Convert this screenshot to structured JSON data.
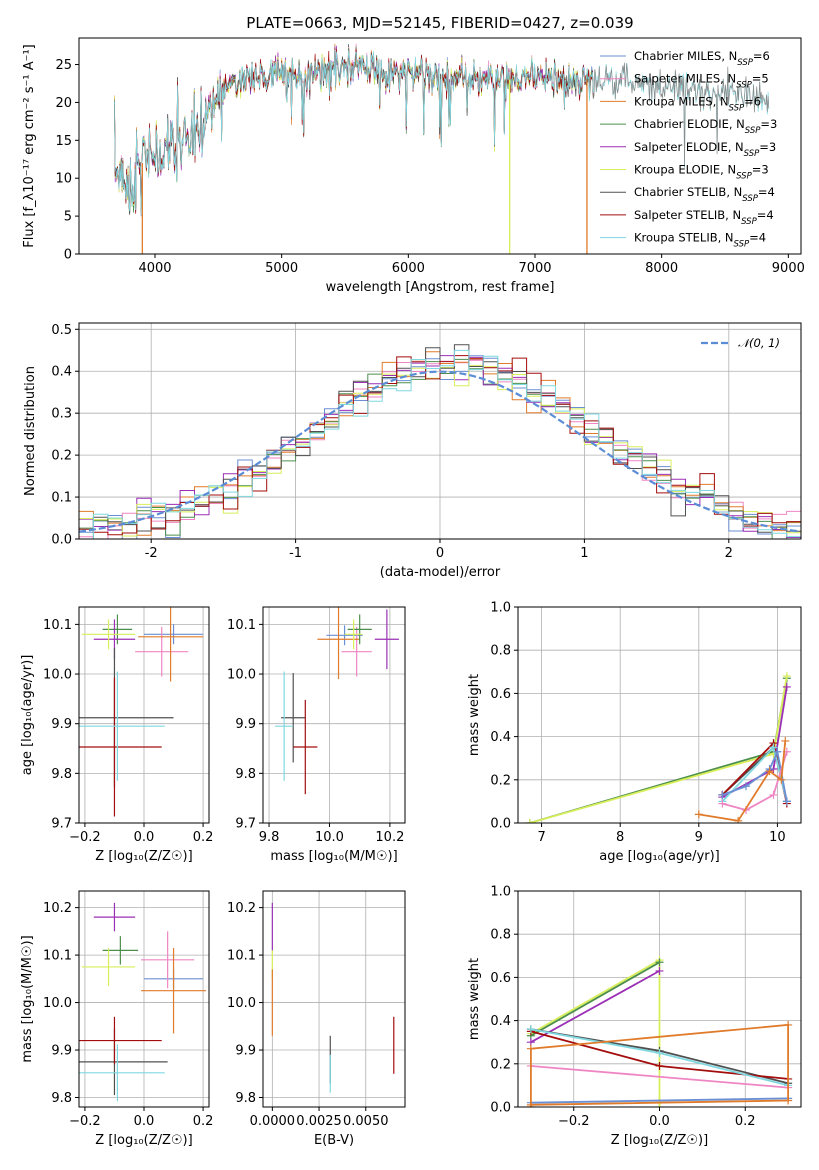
{
  "title": "PLATE=0663, MJD=52145, FIBERID=0427, z=0.039",
  "colors": {
    "Chabrier MILES": "#6a8fd3",
    "Salpeter MILES": "#ef86c4",
    "Kroupa MILES": "#e07b2b",
    "Chabrier ELODIE": "#4c8f4c",
    "Salpeter ELODIE": "#9b2fb5",
    "Kroupa ELODIE": "#d8ee5a",
    "Chabrier STELIB": "#505050",
    "Salpeter STELIB": "#a30d0d",
    "Kroupa STELIB": "#7fd8e0",
    "normal": "#5b8dd6"
  },
  "legend_spectrum": [
    {
      "key": "Chabrier MILES",
      "lib": "Chabrier MILES, N",
      "sub": "SSP",
      "eq": "=6"
    },
    {
      "key": "Salpeter MILES",
      "lib": "Salpeter MILES, N",
      "sub": "SSP",
      "eq": "=5"
    },
    {
      "key": "Kroupa MILES",
      "lib": "Kroupa MILES, N",
      "sub": "SSP",
      "eq": "=6"
    },
    {
      "key": "Chabrier ELODIE",
      "lib": "Chabrier ELODIE, N",
      "sub": "SSP",
      "eq": "=3"
    },
    {
      "key": "Salpeter ELODIE",
      "lib": "Salpeter ELODIE, N",
      "sub": "SSP",
      "eq": "=3"
    },
    {
      "key": "Kroupa ELODIE",
      "lib": "Kroupa ELODIE, N",
      "sub": "SSP",
      "eq": "=3"
    },
    {
      "key": "Chabrier STELIB",
      "lib": "Chabrier STELIB, N",
      "sub": "SSP",
      "eq": "=4"
    },
    {
      "key": "Salpeter STELIB",
      "lib": "Salpeter STELIB, N",
      "sub": "SSP",
      "eq": "=4"
    },
    {
      "key": "Kroupa STELIB",
      "lib": "Kroupa STELIB, N",
      "sub": "SSP",
      "eq": "=4"
    }
  ],
  "legend_hist": "𝒩(0, 1)",
  "chart_data": [
    {
      "id": "spectrum",
      "type": "line",
      "xlabel": "wavelength [Angstrom, rest frame]",
      "ylabel": "Flux [f_λ10⁻¹⁷ erg cm⁻² s⁻¹ A⁻¹]",
      "xlim": [
        3400,
        9100
      ],
      "ylim": [
        0,
        28.5
      ],
      "xticks": [
        4000,
        5000,
        6000,
        7000,
        8000,
        9000
      ],
      "yticks": [
        0,
        5,
        10,
        15,
        20,
        25
      ],
      "grid": false,
      "continuum": [
        [
          3700,
          11
        ],
        [
          3800,
          9
        ],
        [
          3900,
          12
        ],
        [
          4000,
          13
        ],
        [
          4100,
          14
        ],
        [
          4200,
          15
        ],
        [
          4300,
          15
        ],
        [
          4400,
          18
        ],
        [
          4500,
          21
        ],
        [
          4600,
          22.5
        ],
        [
          4800,
          23.5
        ],
        [
          5000,
          23.5
        ],
        [
          5200,
          23.5
        ],
        [
          5400,
          24.5
        ],
        [
          5600,
          24.5
        ],
        [
          5800,
          24
        ],
        [
          6000,
          24
        ],
        [
          6200,
          23.5
        ],
        [
          6500,
          23
        ],
        [
          6800,
          23
        ],
        [
          7000,
          23
        ],
        [
          7200,
          23
        ],
        [
          7400,
          23
        ],
        [
          7600,
          23
        ],
        [
          7800,
          22.5
        ],
        [
          8000,
          22
        ],
        [
          8300,
          21.5
        ],
        [
          8600,
          21
        ],
        [
          8850,
          20.5
        ]
      ],
      "model_end": [
        7460,
        8850
      ],
      "cutoffs": [
        {
          "key": "Kroupa MILES",
          "x": 3900
        },
        {
          "key": "Kroupa ELODIE",
          "x": 6800
        },
        {
          "key": "Kroupa MILES",
          "x": 7410
        }
      ]
    },
    {
      "id": "residual_hist",
      "type": "step",
      "xlabel": "(data-model)/error",
      "ylabel": "Normed distribution",
      "xlim": [
        -2.5,
        2.5
      ],
      "ylim": [
        0,
        0.515
      ],
      "xticks": [
        -2,
        -1,
        0,
        1,
        2
      ],
      "yticks": [
        0.0,
        0.1,
        0.2,
        0.3,
        0.4,
        0.5
      ],
      "grid": true,
      "bin_width": 0.1
    },
    {
      "id": "age_vs_Z",
      "type": "errorbar",
      "xlabel": "Z [log₁₀(Z/Z☉)]",
      "ylabel": "age  [log₁₀(age/yr)]",
      "xlim": [
        -0.22,
        0.22
      ],
      "ylim": [
        9.7,
        10.135
      ],
      "xticks": [
        -0.2,
        0.0,
        0.2
      ],
      "yticks": [
        9.7,
        9.8,
        9.9,
        10.0,
        10.1
      ],
      "grid": true,
      "points": [
        {
          "key": "Chabrier MILES",
          "x": 0.1,
          "y": 10.08,
          "xe": 0.1,
          "ye": 0.02
        },
        {
          "key": "Salpeter MILES",
          "x": 0.06,
          "y": 10.045,
          "xe": 0.09,
          "ye": 0.05
        },
        {
          "key": "Kroupa MILES",
          "x": 0.09,
          "y": 10.075,
          "xe": 0.11,
          "ye": 0.09
        },
        {
          "key": "Chabrier ELODIE",
          "x": -0.09,
          "y": 10.09,
          "xe": 0.05,
          "ye": 0.03
        },
        {
          "key": "Salpeter ELODIE",
          "x": -0.1,
          "y": 10.07,
          "xe": 0.07,
          "ye": 0.04
        },
        {
          "key": "Kroupa ELODIE",
          "x": -0.12,
          "y": 10.08,
          "xe": 0.09,
          "ye": 0.03
        },
        {
          "key": "Chabrier STELIB",
          "x": -0.1,
          "y": 9.912,
          "xe": 0.2,
          "ye": 0.14
        },
        {
          "key": "Salpeter STELIB",
          "x": -0.1,
          "y": 9.853,
          "xe": 0.16,
          "ye": 0.14
        },
        {
          "key": "Kroupa STELIB",
          "x": -0.09,
          "y": 9.895,
          "xe": 0.16,
          "ye": 0.11
        }
      ]
    },
    {
      "id": "age_vs_mass",
      "type": "errorbar",
      "xlabel": "mass [log₁₀(M/M☉)]",
      "ylabel": "",
      "xlim": [
        9.78,
        10.25
      ],
      "ylim": [
        9.7,
        10.135
      ],
      "xticks": [
        9.8,
        10.0,
        10.2
      ],
      "yticks": [
        9.7,
        9.8,
        9.9,
        10.0,
        10.1
      ],
      "grid": true,
      "points": [
        {
          "key": "Chabrier MILES",
          "x": 10.05,
          "y": 10.078,
          "xe": 0.06,
          "ye": 0.02
        },
        {
          "key": "Salpeter MILES",
          "x": 10.09,
          "y": 10.045,
          "xe": 0.05,
          "ye": 0.05
        },
        {
          "key": "Kroupa MILES",
          "x": 10.03,
          "y": 10.07,
          "xe": 0.07,
          "ye": 0.08
        },
        {
          "key": "Chabrier ELODIE",
          "x": 10.1,
          "y": 10.09,
          "xe": 0.04,
          "ye": 0.03
        },
        {
          "key": "Salpeter ELODIE",
          "x": 10.19,
          "y": 10.07,
          "xe": 0.04,
          "ye": 0.06
        },
        {
          "key": "Kroupa ELODIE",
          "x": 10.08,
          "y": 10.08,
          "xe": 0.03,
          "ye": 0.03
        },
        {
          "key": "Chabrier STELIB",
          "x": 9.88,
          "y": 9.912,
          "xe": 0.04,
          "ye": 0.09
        },
        {
          "key": "Salpeter STELIB",
          "x": 9.92,
          "y": 9.853,
          "xe": 0.04,
          "ye": 0.095
        },
        {
          "key": "Kroupa STELIB",
          "x": 9.85,
          "y": 9.895,
          "xe": 0.03,
          "ye": 0.11
        }
      ]
    },
    {
      "id": "massweight_vs_age",
      "type": "line",
      "xlabel": "age  [log₁₀(age/yr)]",
      "ylabel": "mass weight",
      "xlim": [
        6.7,
        10.3
      ],
      "ylim": [
        0,
        1.0
      ],
      "xticks": [
        7,
        8,
        9,
        10
      ],
      "yticks": [
        0.0,
        0.2,
        0.4,
        0.6,
        0.8,
        1.0
      ],
      "grid": true,
      "series": [
        {
          "key": "Chabrier ELODIE",
          "points": [
            [
              6.85,
              0.0
            ],
            [
              9.95,
              0.33
            ],
            [
              10.12,
              0.67
            ]
          ]
        },
        {
          "key": "Kroupa ELODIE",
          "points": [
            [
              6.85,
              0.0
            ],
            [
              9.95,
              0.32
            ],
            [
              10.12,
              0.68
            ]
          ]
        },
        {
          "key": "Salpeter ELODIE",
          "points": [
            [
              9.3,
              0.12
            ],
            [
              9.95,
              0.25
            ],
            [
              10.12,
              0.63
            ]
          ]
        },
        {
          "key": "Chabrier STELIB",
          "points": [
            [
              9.3,
              0.13
            ],
            [
              9.95,
              0.35
            ],
            [
              10.12,
              0.1
            ]
          ]
        },
        {
          "key": "Salpeter STELIB",
          "points": [
            [
              9.3,
              0.13
            ],
            [
              9.95,
              0.37
            ],
            [
              10.12,
              0.09
            ]
          ]
        },
        {
          "key": "Kroupa STELIB",
          "points": [
            [
              9.3,
              0.1
            ],
            [
              9.95,
              0.35
            ],
            [
              10.12,
              0.1
            ]
          ]
        },
        {
          "key": "Chabrier MILES",
          "points": [
            [
              9.3,
              0.13
            ],
            [
              9.6,
              0.17
            ],
            [
              9.9,
              0.25
            ],
            [
              10.0,
              0.33
            ],
            [
              10.12,
              0.1
            ]
          ]
        },
        {
          "key": "Salpeter MILES",
          "points": [
            [
              9.3,
              0.09
            ],
            [
              9.6,
              0.06
            ],
            [
              9.95,
              0.13
            ],
            [
              10.12,
              0.33
            ]
          ]
        },
        {
          "key": "Kroupa MILES",
          "points": [
            [
              9.0,
              0.04
            ],
            [
              9.5,
              0.01
            ],
            [
              9.9,
              0.24
            ],
            [
              10.05,
              0.2
            ],
            [
              10.1,
              0.38
            ]
          ]
        }
      ]
    },
    {
      "id": "mass_vs_Z",
      "type": "errorbar",
      "xlabel": "Z [log₁₀(Z/Z☉)]",
      "ylabel": "mass [log₁₀(M/M☉)]",
      "xlim": [
        -0.22,
        0.22
      ],
      "ylim": [
        9.78,
        10.235
      ],
      "xticks": [
        -0.2,
        0.0,
        0.2
      ],
      "yticks": [
        9.8,
        9.9,
        10.0,
        10.1,
        10.2
      ],
      "grid": true,
      "points": [
        {
          "key": "Chabrier MILES",
          "x": 0.1,
          "y": 10.05,
          "xe": 0.1,
          "ye": 0.02
        },
        {
          "key": "Salpeter MILES",
          "x": 0.08,
          "y": 10.09,
          "xe": 0.09,
          "ye": 0.06
        },
        {
          "key": "Kroupa MILES",
          "x": 0.1,
          "y": 10.025,
          "xe": 0.11,
          "ye": 0.09
        },
        {
          "key": "Chabrier ELODIE",
          "x": -0.08,
          "y": 10.11,
          "xe": 0.06,
          "ye": 0.03
        },
        {
          "key": "Salpeter ELODIE",
          "x": -0.1,
          "y": 10.18,
          "xe": 0.07,
          "ye": 0.03
        },
        {
          "key": "Kroupa ELODIE",
          "x": -0.12,
          "y": 10.075,
          "xe": 0.09,
          "ye": 0.04
        },
        {
          "key": "Chabrier STELIB",
          "x": -0.1,
          "y": 9.875,
          "xe": 0.18,
          "ye": 0.07
        },
        {
          "key": "Salpeter STELIB",
          "x": -0.1,
          "y": 9.92,
          "xe": 0.16,
          "ye": 0.05
        },
        {
          "key": "Kroupa STELIB",
          "x": -0.09,
          "y": 9.852,
          "xe": 0.16,
          "ye": 0.06
        }
      ]
    },
    {
      "id": "mass_vs_EBV",
      "type": "errorbar",
      "xlabel": "E(B-V)",
      "ylabel": "",
      "xlim": [
        -0.0005,
        0.0071
      ],
      "ylim": [
        9.78,
        10.235
      ],
      "xticks": [
        0.0,
        0.0025,
        0.005
      ],
      "xticklabels": [
        "0.0000",
        "0.0025",
        "0.0050"
      ],
      "yticks": [
        9.8,
        9.9,
        10.0,
        10.1,
        10.2
      ],
      "grid": true,
      "points": [
        {
          "key": "Salpeter ELODIE",
          "x": 0.0,
          "y": 10.16,
          "xe": 0,
          "ye": 0.05
        },
        {
          "key": "Kroupa ELODIE",
          "x": 0.0,
          "y": 10.08,
          "xe": 0,
          "ye": 0.03
        },
        {
          "key": "Kroupa MILES",
          "x": 0.0,
          "y": 10.0,
          "xe": 0,
          "ye": 0.07
        },
        {
          "key": "Chabrier STELIB",
          "x": 0.0031,
          "y": 9.88,
          "xe": 0,
          "ye": 0.05
        },
        {
          "key": "Kroupa STELIB",
          "x": 0.0031,
          "y": 9.85,
          "xe": 0,
          "ye": 0.04
        },
        {
          "key": "Salpeter STELIB",
          "x": 0.0065,
          "y": 9.91,
          "xe": 0,
          "ye": 0.06
        }
      ]
    },
    {
      "id": "massweight_vs_Z",
      "type": "line",
      "xlabel": "Z [log₁₀(Z/Z☉)]",
      "ylabel": "mass weight",
      "xlim": [
        -0.33,
        0.33
      ],
      "ylim": [
        0,
        1.0
      ],
      "xticks": [
        -0.2,
        0.0,
        0.2
      ],
      "yticks": [
        0.0,
        0.2,
        0.4,
        0.6,
        0.8,
        1.0
      ],
      "grid": true,
      "series": [
        {
          "key": "Kroupa ELODIE",
          "points": [
            [
              -0.3,
              0.34
            ],
            [
              0.0,
              0.68
            ],
            [
              0.0,
              0.0
            ]
          ]
        },
        {
          "key": "Chabrier ELODIE",
          "points": [
            [
              -0.3,
              0.33
            ],
            [
              0.0,
              0.67
            ]
          ]
        },
        {
          "key": "Salpeter ELODIE",
          "points": [
            [
              -0.3,
              0.3
            ],
            [
              0.0,
              0.63
            ]
          ]
        },
        {
          "key": "Chabrier STELIB",
          "points": [
            [
              -0.3,
              0.36
            ],
            [
              0.0,
              0.26
            ],
            [
              0.3,
              0.11
            ]
          ]
        },
        {
          "key": "Salpeter STELIB",
          "points": [
            [
              -0.3,
              0.35
            ],
            [
              0.0,
              0.19
            ],
            [
              0.3,
              0.13
            ]
          ]
        },
        {
          "key": "Kroupa STELIB",
          "points": [
            [
              -0.3,
              0.36
            ],
            [
              0.0,
              0.25
            ],
            [
              0.3,
              0.1
            ]
          ]
        },
        {
          "key": "Salpeter MILES",
          "points": [
            [
              -0.3,
              0.19
            ],
            [
              0.3,
              0.09
            ]
          ]
        },
        {
          "key": "Chabrier MILES",
          "points": [
            [
              -0.3,
              0.02
            ],
            [
              0.3,
              0.04
            ]
          ]
        },
        {
          "key": "Kroupa MILES",
          "points": [
            [
              -0.3,
              0.01
            ],
            [
              0.3,
              0.03
            ],
            [
              0.3,
              0.38
            ],
            [
              -0.3,
              0.27
            ],
            [
              -0.3,
              0.0
            ]
          ]
        }
      ]
    }
  ]
}
